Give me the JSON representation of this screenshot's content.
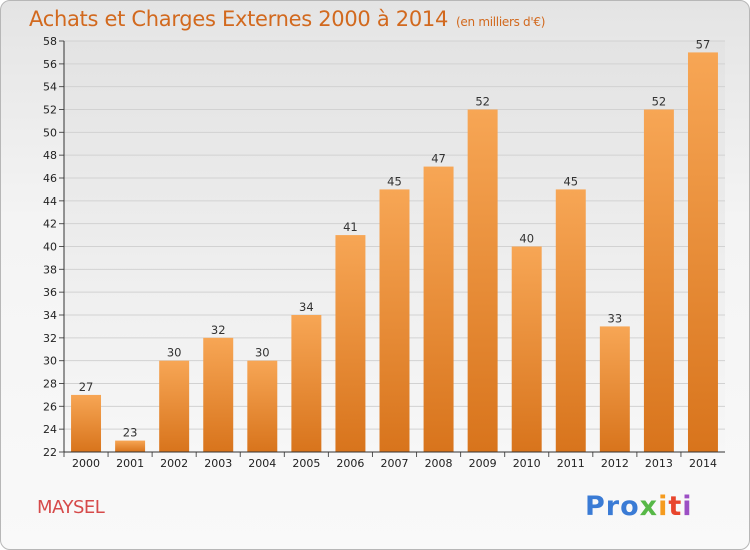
{
  "chart_data": {
    "type": "bar",
    "title": "Achats et Charges Externes 2000 à 2014",
    "subtitle": "(en milliers d'€)",
    "categories": [
      "2000",
      "2001",
      "2002",
      "2003",
      "2004",
      "2005",
      "2006",
      "2007",
      "2008",
      "2009",
      "2010",
      "2011",
      "2012",
      "2013",
      "2014"
    ],
    "values": [
      27,
      23,
      30,
      32,
      30,
      34,
      41,
      45,
      47,
      52,
      40,
      45,
      33,
      52,
      57
    ],
    "ylim": [
      22,
      58
    ],
    "yticks": [
      22,
      24,
      26,
      28,
      30,
      32,
      34,
      36,
      38,
      40,
      42,
      44,
      46,
      48,
      50,
      52,
      54,
      56,
      58
    ],
    "grid": true,
    "bar_color_top": "#f7a655",
    "bar_color_bottom": "#d8741c"
  },
  "footer": {
    "commune": "MAYSEL",
    "logo_parts": [
      "Pro",
      "x",
      "i",
      "t",
      "i"
    ]
  }
}
